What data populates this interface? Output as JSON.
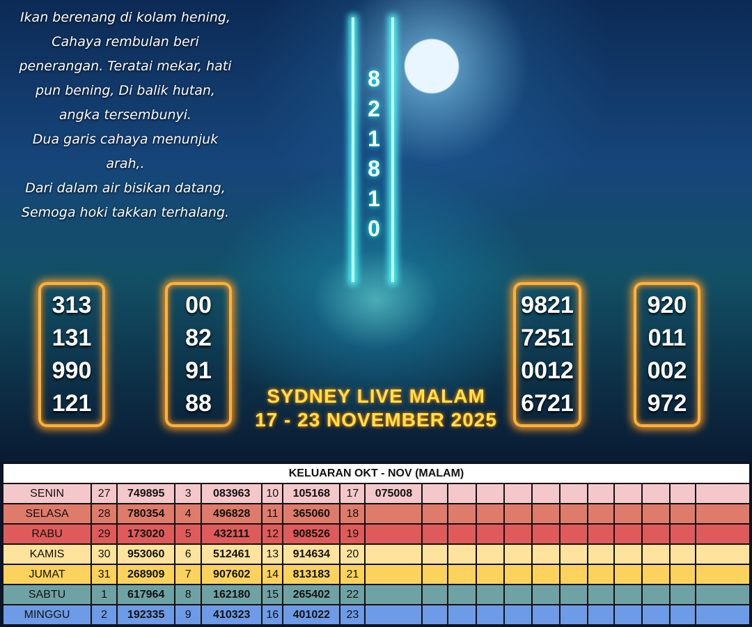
{
  "poem": [
    "Ikan berenang di kolam hening,",
    "Cahaya rembulan beri",
    "penerangan. Teratai mekar, hati",
    "pun bening, Di balik hutan,",
    "angka tersembunyi.",
    "Dua garis cahaya menunjuk",
    "arah,.",
    "Dari dalam air bisikan datang,",
    "Semoga hoki takkan terhalang."
  ],
  "vertical_digits": [
    "8",
    "2",
    "1",
    "8",
    "1",
    "0"
  ],
  "panels": [
    [
      "313",
      "131",
      "990",
      "121"
    ],
    [
      "00",
      "82",
      "91",
      "88"
    ],
    [
      "9821",
      "7251",
      "0012",
      "6721"
    ],
    [
      "920",
      "011",
      "002",
      "972"
    ]
  ],
  "title_line1": "SYDNEY LIVE MALAM",
  "title_line2": "17 - 23 NOVEMBER 2025",
  "table": {
    "header": "KELUARAN OKT - NOV (MALAM)",
    "rows": [
      {
        "day": "SENIN",
        "color": "#f4c8cb",
        "cells": [
          "27",
          "749895",
          "3",
          "083963",
          "10",
          "105168",
          "17",
          "075008"
        ]
      },
      {
        "day": "SELASA",
        "color": "#df7b6b",
        "cells": [
          "28",
          "780354",
          "4",
          "496828",
          "11",
          "365060",
          "18",
          ""
        ]
      },
      {
        "day": "RABU",
        "color": "#df5b5b",
        "cells": [
          "29",
          "173020",
          "5",
          "432111",
          "12",
          "908526",
          "19",
          ""
        ]
      },
      {
        "day": "KAMIS",
        "color": "#fde39c",
        "cells": [
          "30",
          "953060",
          "6",
          "512461",
          "13",
          "914634",
          "20",
          ""
        ]
      },
      {
        "day": "JUMAT",
        "color": "#fbd25b",
        "cells": [
          "31",
          "268909",
          "7",
          "907602",
          "14",
          "813183",
          "21",
          ""
        ]
      },
      {
        "day": "SABTU",
        "color": "#6fa2a4",
        "cells": [
          "1",
          "617964",
          "8",
          "162180",
          "15",
          "265402",
          "22",
          ""
        ]
      },
      {
        "day": "MINGGU",
        "color": "#6e9be7",
        "cells": [
          "2",
          "192335",
          "9",
          "410323",
          "16",
          "401022",
          "23",
          ""
        ]
      }
    ]
  }
}
